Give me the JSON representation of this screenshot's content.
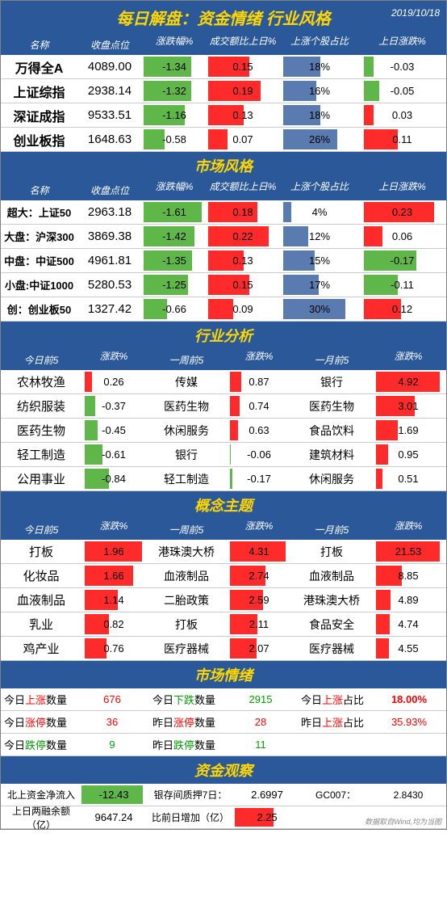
{
  "title": "每日解盘：资金情绪 行业风格",
  "date": "2019/10/18",
  "colors": {
    "headerBg": "#2b5898",
    "titleText": "#ffd700",
    "headerText": "#ffffff",
    "green": "#5fb74a",
    "red": "#ff2a2a",
    "blue": "#5a7bb0"
  },
  "headersA": [
    "名称",
    "收盘点位",
    "涨跌幅%",
    "成交额比上日%",
    "上涨个股占比",
    "上日涨跌%"
  ],
  "market": [
    {
      "name": "万得全A",
      "close": "4089.00",
      "chg": -1.34,
      "vol": 0.15,
      "up": 18,
      "prev": -0.03
    },
    {
      "name": "上证综指",
      "close": "2938.14",
      "chg": -1.32,
      "vol": 0.19,
      "up": 16,
      "prev": -0.05
    },
    {
      "name": "深证成指",
      "close": "9533.51",
      "chg": -1.16,
      "vol": 0.13,
      "up": 18,
      "prev": 0.03
    },
    {
      "name": "创业板指",
      "close": "1648.63",
      "chg": -0.58,
      "vol": 0.07,
      "up": 26,
      "prev": 0.11
    }
  ],
  "styleTitle": "市场风格",
  "style": [
    {
      "name": "超大：上证50",
      "close": "2963.18",
      "chg": -1.61,
      "vol": 0.18,
      "up": 4,
      "prev": 0.23
    },
    {
      "name": "大盘：沪深300",
      "close": "3869.38",
      "chg": -1.42,
      "vol": 0.22,
      "up": 12,
      "prev": 0.06
    },
    {
      "name": "中盘：中证500",
      "close": "4961.81",
      "chg": -1.35,
      "vol": 0.13,
      "up": 15,
      "prev": -0.17
    },
    {
      "name": "小盘:中证1000",
      "close": "5280.53",
      "chg": -1.25,
      "vol": 0.15,
      "up": 17,
      "prev": -0.11
    },
    {
      "name": "创：创业板50",
      "close": "1327.42",
      "chg": -0.66,
      "vol": 0.09,
      "up": 30,
      "prev": 0.12
    }
  ],
  "industryTitle": "行业分析",
  "headersB": [
    "今日前5",
    "涨跌%",
    "一周前5",
    "涨跌%",
    "一月前5",
    "涨跌%"
  ],
  "industry": [
    {
      "d": "农林牧渔",
      "dv": 0.26,
      "w": "传媒",
      "wv": 0.87,
      "m": "银行",
      "mv": 4.92
    },
    {
      "d": "纺织服装",
      "dv": -0.37,
      "w": "医药生物",
      "wv": 0.74,
      "m": "医药生物",
      "mv": 3.01
    },
    {
      "d": "医药生物",
      "dv": -0.45,
      "w": "休闲服务",
      "wv": 0.63,
      "m": "食品饮料",
      "mv": 1.69
    },
    {
      "d": "轻工制造",
      "dv": -0.61,
      "w": "银行",
      "wv": -0.06,
      "m": "建筑材料",
      "mv": 0.95
    },
    {
      "d": "公用事业",
      "dv": -0.84,
      "w": "轻工制造",
      "wv": -0.17,
      "m": "休闲服务",
      "mv": 0.51
    }
  ],
  "conceptTitle": "概念主题",
  "concept": [
    {
      "d": "打板",
      "dv": 1.96,
      "w": "港珠澳大桥",
      "wv": 4.31,
      "m": "打板",
      "mv": 21.53
    },
    {
      "d": "化妆品",
      "dv": 1.66,
      "w": "血液制品",
      "wv": 2.74,
      "m": "血液制品",
      "mv": 8.85
    },
    {
      "d": "血液制品",
      "dv": 1.14,
      "w": "二胎政策",
      "wv": 2.59,
      "m": "港珠澳大桥",
      "mv": 4.89
    },
    {
      "d": "乳业",
      "dv": 0.82,
      "w": "打板",
      "wv": 2.11,
      "m": "食品安全",
      "mv": 4.74
    },
    {
      "d": "鸡产业",
      "dv": 0.76,
      "w": "医疗器械",
      "wv": 2.07,
      "m": "医疗器械",
      "mv": 4.55
    }
  ],
  "sentimentTitle": "市场情绪",
  "sentiment": [
    [
      {
        "label": "今日",
        "r": "上涨",
        "t": "数量",
        "val": "676",
        "color": "red"
      },
      {
        "label": "今日",
        "r": "下跌",
        "t": "数量",
        "val": "2915",
        "color": "green"
      },
      {
        "label": "今日",
        "r": "上涨",
        "t": "占比",
        "val": "18.00%",
        "color": "red",
        "bold": true
      }
    ],
    [
      {
        "label": "今日",
        "r": "涨停",
        "t": "数量",
        "val": "36",
        "color": "red"
      },
      {
        "label": "昨日",
        "r": "涨停",
        "t": "数量",
        "val": "28",
        "color": "red"
      },
      {
        "label": "昨日",
        "r": "上涨",
        "t": "占比",
        "val": "35.93%",
        "color": "red"
      }
    ],
    [
      {
        "label": "今日",
        "r": "跌停",
        "t": "数量",
        "val": "9",
        "color": "green"
      },
      {
        "label": "昨日",
        "r": "跌停",
        "t": "数量",
        "val": "11",
        "color": "green"
      },
      {
        "label": "",
        "r": "",
        "t": "",
        "val": "",
        "color": ""
      }
    ]
  ],
  "capitalTitle": "资金观察",
  "capital": [
    {
      "l1": "北上资金净流入",
      "v1": "-12.43",
      "c1": "green",
      "l2": "银存间质押7日：",
      "v2": "2.6997",
      "l3": "GC007：",
      "v3": "2.8430"
    },
    {
      "l1": "上日两融余额（亿）",
      "v1": "9647.24",
      "c1": "",
      "l2": "比前日增加（亿）",
      "v2": "2.25",
      "c2": "red",
      "l3": "",
      "v3": ""
    }
  ],
  "footer": "数据取自Wind,均为当图",
  "scales": {
    "chgMax": 1.7,
    "volMax": 0.25,
    "upMax": 35,
    "prevMax": 0.25,
    "indDayMax": 2.0,
    "indWeekMax": 4.5,
    "indMonMax": 5.0,
    "conDayMax": 2.0,
    "conWeekMax": 4.5,
    "conMonMax": 22.0
  }
}
